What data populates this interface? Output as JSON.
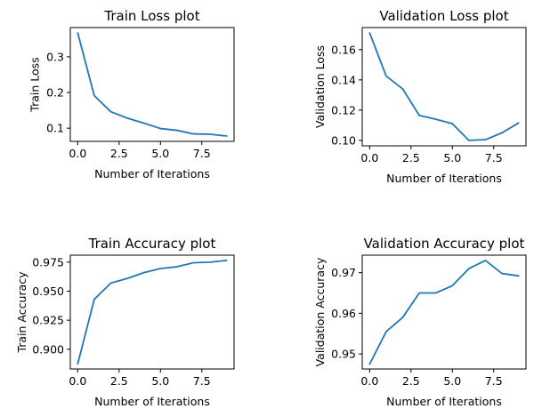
{
  "chart_data": [
    {
      "type": "line",
      "title": "Train Loss plot",
      "xlabel": "Number of Iterations",
      "ylabel": "Train Loss",
      "x": [
        0,
        1,
        2,
        3,
        4,
        5,
        6,
        7,
        8,
        9
      ],
      "values": [
        0.367,
        0.191,
        0.146,
        0.128,
        0.114,
        0.099,
        0.094,
        0.084,
        0.083,
        0.078
      ],
      "xlim": [
        -0.45,
        9.45
      ],
      "ylim": [
        0.063,
        0.382
      ],
      "xticks": [
        0,
        2.5,
        5,
        7.5
      ],
      "xtick_labels": [
        "0.0",
        "2.5",
        "5.0",
        "7.5"
      ],
      "yticks": [
        0.1,
        0.2,
        0.3
      ],
      "ytick_labels": [
        "0.1",
        "0.2",
        "0.3"
      ],
      "grid": false,
      "color": "#1f77b4"
    },
    {
      "type": "line",
      "title": "Validation Loss plot",
      "xlabel": "Number of Iterations",
      "ylabel": "Validation Loss",
      "x": [
        0,
        1,
        2,
        3,
        4,
        5,
        6,
        7,
        8,
        9
      ],
      "values": [
        0.171,
        0.1425,
        0.134,
        0.1165,
        0.114,
        0.111,
        0.1,
        0.1005,
        0.105,
        0.1115
      ],
      "xlim": [
        -0.45,
        9.45
      ],
      "ylim": [
        0.0964,
        0.1746
      ],
      "xticks": [
        0,
        2.5,
        5,
        7.5
      ],
      "xtick_labels": [
        "0.0",
        "2.5",
        "5.0",
        "7.5"
      ],
      "yticks": [
        0.1,
        0.12,
        0.14,
        0.16
      ],
      "ytick_labels": [
        "0.10",
        "0.12",
        "0.14",
        "0.16"
      ],
      "grid": false,
      "color": "#1f77b4"
    },
    {
      "type": "line",
      "title": "Train Accuracy plot",
      "xlabel": "Number of Iterations",
      "ylabel": "Train Accuracy",
      "x": [
        0,
        1,
        2,
        3,
        4,
        5,
        6,
        7,
        8,
        9
      ],
      "values": [
        0.8875,
        0.943,
        0.957,
        0.961,
        0.966,
        0.9695,
        0.971,
        0.9745,
        0.975,
        0.9765
      ],
      "xlim": [
        -0.45,
        9.45
      ],
      "ylim": [
        0.883,
        0.981
      ],
      "xticks": [
        0,
        2.5,
        5,
        7.5
      ],
      "xtick_labels": [
        "0.0",
        "2.5",
        "5.0",
        "7.5"
      ],
      "yticks": [
        0.9,
        0.925,
        0.95,
        0.975
      ],
      "ytick_labels": [
        "0.900",
        "0.925",
        "0.950",
        "0.975"
      ],
      "grid": false,
      "color": "#1f77b4"
    },
    {
      "type": "line",
      "title": "Validation Accuracy plot",
      "xlabel": "Number of Iterations",
      "ylabel": "Validation Accuracy",
      "x": [
        0,
        1,
        2,
        3,
        4,
        5,
        6,
        7,
        8,
        9
      ],
      "values": [
        0.9475,
        0.9555,
        0.959,
        0.965,
        0.965,
        0.9668,
        0.971,
        0.973,
        0.9698,
        0.9692
      ],
      "xlim": [
        -0.45,
        9.45
      ],
      "ylim": [
        0.9463,
        0.9743
      ],
      "xticks": [
        0,
        2.5,
        5,
        7.5
      ],
      "xtick_labels": [
        "0.0",
        "2.5",
        "5.0",
        "7.5"
      ],
      "yticks": [
        0.95,
        0.96,
        0.97
      ],
      "ytick_labels": [
        "0.95",
        "0.96",
        "0.97"
      ],
      "grid": false,
      "color": "#1f77b4"
    }
  ]
}
